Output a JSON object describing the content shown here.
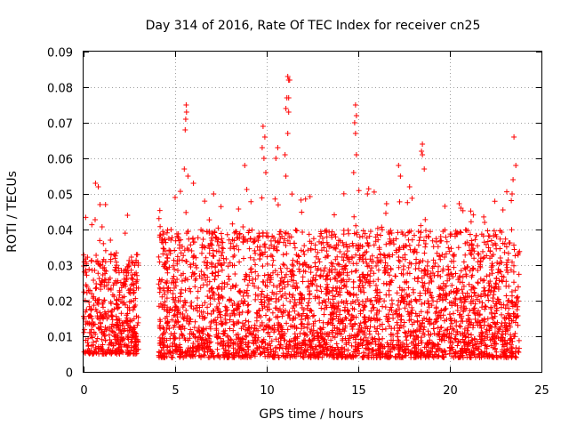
{
  "chart_data": {
    "type": "scatter",
    "title": "Day 314 of 2016, Rate Of TEC Index for receiver cn25",
    "xlabel": "GPS time / hours",
    "ylabel": "ROTI / TECUs",
    "xlim": [
      0,
      25
    ],
    "ylim": [
      0,
      0.09
    ],
    "x_ticks": [
      0,
      5,
      10,
      15,
      20,
      25
    ],
    "x_tick_labels": [
      "0",
      "5",
      "10",
      "15",
      "20",
      "25"
    ],
    "y_ticks": [
      0,
      0.01,
      0.02,
      0.03,
      0.04,
      0.05,
      0.06,
      0.07,
      0.08,
      0.09
    ],
    "y_tick_labels": [
      "0",
      "0.01",
      "0.02",
      "0.03",
      "0.04",
      "0.05",
      "0.06",
      "0.07",
      "0.08",
      "0.09"
    ],
    "grid": true,
    "marker": "+",
    "color": "#ff0000",
    "series": [
      {
        "name": "ROTI",
        "segments": [
          {
            "x_start": 0.0,
            "x_end": 3.0,
            "typical_min": 0.005,
            "typical_max": 0.033
          },
          {
            "x_start": 4.1,
            "x_end": 23.8,
            "typical_min": 0.004,
            "typical_max": 0.04
          }
        ],
        "notable_points": [
          {
            "x": 0.65,
            "y": 0.053
          },
          {
            "x": 0.8,
            "y": 0.052
          },
          {
            "x": 0.9,
            "y": 0.047
          },
          {
            "x": 1.2,
            "y": 0.047
          },
          {
            "x": 2.4,
            "y": 0.044
          },
          {
            "x": 5.6,
            "y": 0.075
          },
          {
            "x": 5.62,
            "y": 0.073
          },
          {
            "x": 5.58,
            "y": 0.071
          },
          {
            "x": 5.55,
            "y": 0.068
          },
          {
            "x": 5.5,
            "y": 0.057
          },
          {
            "x": 5.7,
            "y": 0.055
          },
          {
            "x": 6.0,
            "y": 0.053
          },
          {
            "x": 7.1,
            "y": 0.05
          },
          {
            "x": 8.8,
            "y": 0.058
          },
          {
            "x": 9.8,
            "y": 0.069
          },
          {
            "x": 9.9,
            "y": 0.066
          },
          {
            "x": 9.75,
            "y": 0.063
          },
          {
            "x": 9.85,
            "y": 0.06
          },
          {
            "x": 9.95,
            "y": 0.056
          },
          {
            "x": 10.5,
            "y": 0.06
          },
          {
            "x": 10.6,
            "y": 0.063
          },
          {
            "x": 11.15,
            "y": 0.083
          },
          {
            "x": 11.2,
            "y": 0.082
          },
          {
            "x": 11.25,
            "y": 0.082
          },
          {
            "x": 11.1,
            "y": 0.077
          },
          {
            "x": 11.2,
            "y": 0.077
          },
          {
            "x": 11.05,
            "y": 0.074
          },
          {
            "x": 11.2,
            "y": 0.073
          },
          {
            "x": 11.15,
            "y": 0.067
          },
          {
            "x": 11.0,
            "y": 0.061
          },
          {
            "x": 11.05,
            "y": 0.055
          },
          {
            "x": 14.85,
            "y": 0.075
          },
          {
            "x": 14.9,
            "y": 0.072
          },
          {
            "x": 14.8,
            "y": 0.07
          },
          {
            "x": 14.85,
            "y": 0.067
          },
          {
            "x": 14.9,
            "y": 0.061
          },
          {
            "x": 14.75,
            "y": 0.056
          },
          {
            "x": 15.5,
            "y": 0.05
          },
          {
            "x": 17.2,
            "y": 0.058
          },
          {
            "x": 17.3,
            "y": 0.055
          },
          {
            "x": 17.8,
            "y": 0.052
          },
          {
            "x": 18.5,
            "y": 0.064
          },
          {
            "x": 18.45,
            "y": 0.062
          },
          {
            "x": 18.5,
            "y": 0.061
          },
          {
            "x": 18.6,
            "y": 0.057
          },
          {
            "x": 20.6,
            "y": 0.046
          },
          {
            "x": 21.9,
            "y": 0.042
          },
          {
            "x": 23.5,
            "y": 0.066
          },
          {
            "x": 23.6,
            "y": 0.058
          },
          {
            "x": 23.45,
            "y": 0.054
          },
          {
            "x": 23.4,
            "y": 0.05
          }
        ]
      }
    ]
  }
}
